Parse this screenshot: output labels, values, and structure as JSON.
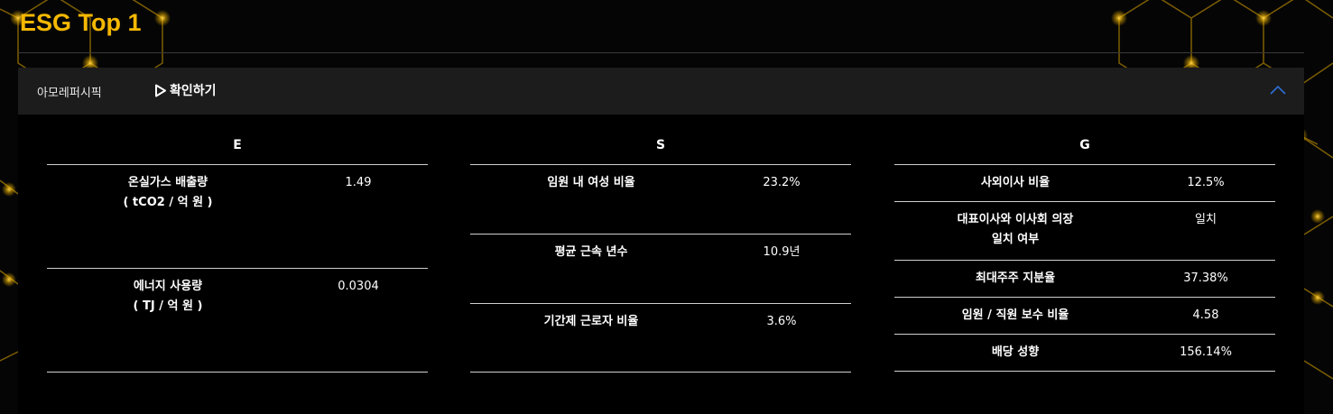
{
  "page_title": "ESG Top 1",
  "colors": {
    "accent": "#f5b800",
    "panel_header": "#1c1c1c",
    "collapse_icon": "#2e6fd8"
  },
  "header": {
    "company": "아모레퍼시픽",
    "confirm_label": "확인하기",
    "confirm_icon": "play-outline-icon",
    "collapse_icon": "chevron-up-icon"
  },
  "columns": {
    "e": {
      "title": "E",
      "rows": [
        {
          "label_line1": "온실가스 배출량",
          "label_line2": "( tCO2 / 억 원 )",
          "value": "1.49"
        },
        {
          "label_line1": "에너지 사용량",
          "label_line2": "( TJ / 억 원 )",
          "value": "0.0304"
        }
      ]
    },
    "s": {
      "title": "S",
      "rows": [
        {
          "label": "임원 내 여성 비율",
          "value": "23.2%"
        },
        {
          "label": "평균 근속 년수",
          "value": "10.9년"
        },
        {
          "label": "기간제 근로자 비율",
          "value": "3.6%"
        }
      ]
    },
    "g": {
      "title": "G",
      "rows": [
        {
          "label": "사외이사 비율",
          "value": "12.5%"
        },
        {
          "label_line1": "대표이사와 이사회 의장",
          "label_line2": "일치 여부",
          "value": "일치"
        },
        {
          "label": "최대주주 지분율",
          "value": "37.38%"
        },
        {
          "label": "임원 / 직원 보수 비율",
          "value": "4.58"
        },
        {
          "label": "배당 성향",
          "value": "156.14%"
        }
      ]
    }
  }
}
